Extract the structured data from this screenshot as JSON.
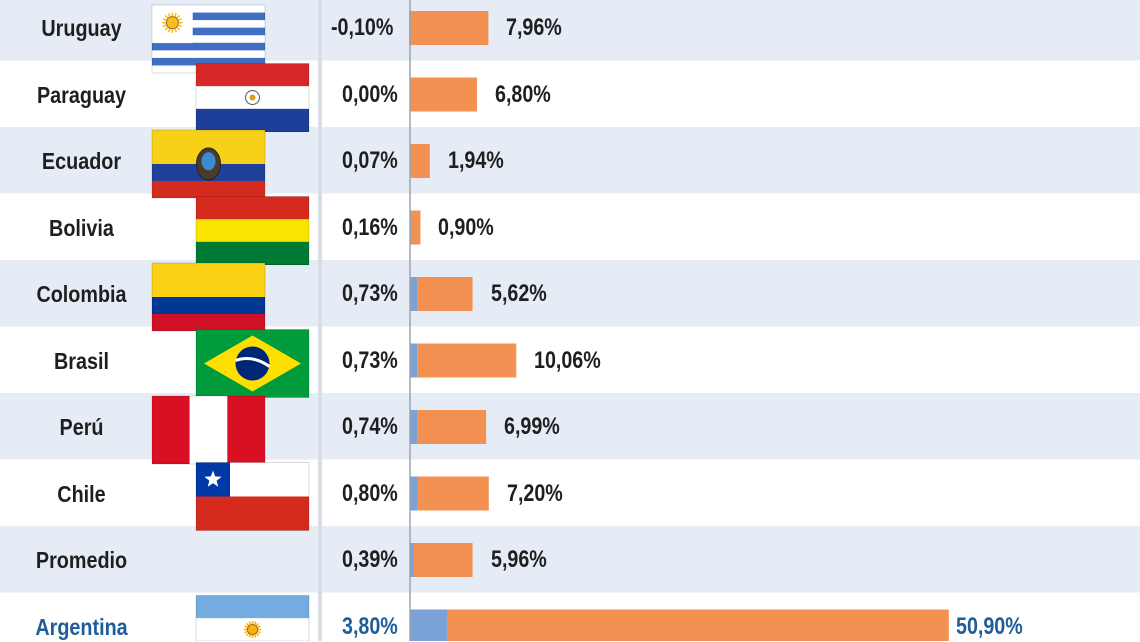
{
  "colors": {
    "row_band": "#e6ecf6",
    "row_plain": "#ffffff",
    "bar_blue": "#7aa2d6",
    "bar_orange": "#f39152",
    "highlight_text": "#1f5d9a",
    "axis": "#9aa3ad"
  },
  "chart_data": {
    "type": "bar",
    "orientation": "horizontal",
    "stacked": true,
    "highlight": "Argentina",
    "categories": [
      "Uruguay",
      "Paraguay",
      "Ecuador",
      "Bolivia",
      "Colombia",
      "Brasil",
      "Perú",
      "Chile",
      "Promedio",
      "Argentina"
    ],
    "flags": [
      "uruguay",
      "paraguay",
      "ecuador",
      "bolivia",
      "colombia",
      "brasil",
      "peru",
      "chile",
      null,
      "argentina"
    ],
    "series": [
      {
        "color": "#7aa2d6",
        "values": [
          -0.1,
          0.0,
          0.07,
          0.16,
          0.73,
          0.73,
          0.74,
          0.8,
          0.39,
          3.8
        ]
      },
      {
        "color": "#f39152",
        "values": [
          7.96,
          6.8,
          1.94,
          0.9,
          5.62,
          10.06,
          6.99,
          7.2,
          5.96,
          50.9
        ]
      }
    ],
    "value_labels_left": [
      "-0,10%",
      "0,00%",
      "0,07%",
      "0,16%",
      "0,73%",
      "0,73%",
      "0,74%",
      "0,80%",
      "0,39%",
      "3,80%"
    ],
    "value_labels_right": [
      "7,96%",
      "6,80%",
      "1,94%",
      "0,90%",
      "5,62%",
      "10,06%",
      "6,99%",
      "7,20%",
      "5,96%",
      "50,90%"
    ],
    "grid": false
  }
}
